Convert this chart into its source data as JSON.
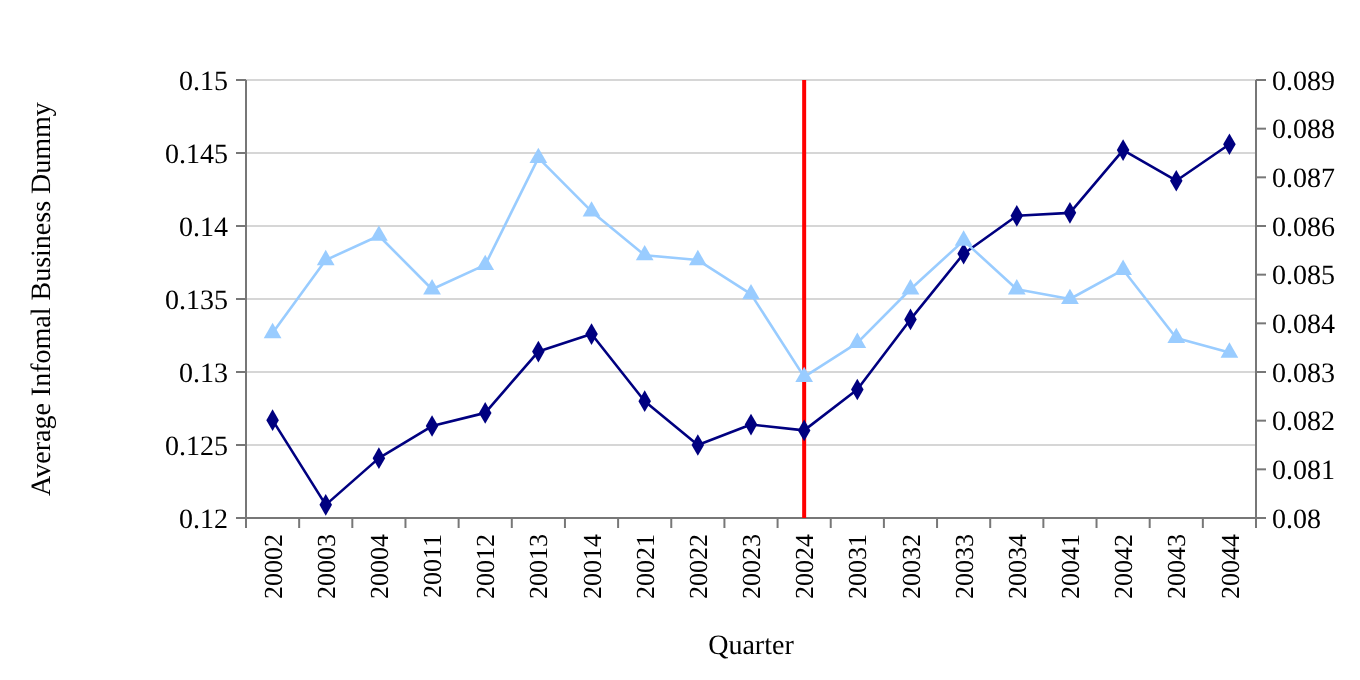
{
  "chart_data": {
    "type": "line",
    "xlabel": "Quarter",
    "ylabel": "Average Infomal Business Dummy",
    "categories": [
      "20002",
      "20003",
      "20004",
      "20011",
      "20012",
      "20013",
      "20014",
      "20021",
      "20022",
      "20023",
      "20024",
      "20031",
      "20032",
      "20033",
      "20034",
      "20041",
      "20042",
      "20043",
      "20044"
    ],
    "series": [
      {
        "color": "#000080",
        "marker": "diamond",
        "values": [
          0.1267,
          0.1209,
          0.1241,
          0.1263,
          0.1272,
          0.1314,
          0.1326,
          0.128,
          0.125,
          0.1264,
          0.126,
          0.1288,
          0.1336,
          0.1381,
          0.1407,
          0.1409,
          0.1452,
          0.1431,
          0.1456
        ]
      },
      {
        "color": "#99ccff",
        "marker": "triangle",
        "axis": "y2",
        "values": [
          0.0838,
          0.0853,
          0.0858,
          0.0847,
          0.0852,
          0.0874,
          0.0863,
          0.0854,
          0.0853,
          0.0846,
          0.0829,
          0.0836,
          0.0847,
          0.0857,
          0.0847,
          0.0845,
          0.0851,
          0.0837,
          0.0834
        ]
      }
    ],
    "ylim": [
      0.12,
      0.15
    ],
    "yticks": [
      0.12,
      0.125,
      0.13,
      0.135,
      0.14,
      0.145,
      0.15
    ],
    "y2lim": [
      0.08,
      0.089
    ],
    "y2ticks": [
      0.08,
      0.081,
      0.082,
      0.083,
      0.084,
      0.085,
      0.086,
      0.087,
      0.088,
      0.089
    ],
    "ref_lines": [
      {
        "axis": "x",
        "value": "20024",
        "color": "#ff0000"
      }
    ],
    "grid": "y"
  }
}
